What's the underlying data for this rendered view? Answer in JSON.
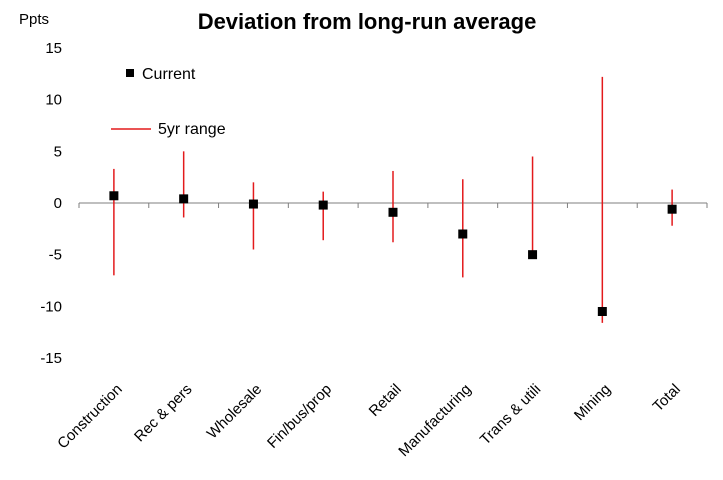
{
  "chart_data": {
    "type": "scatter",
    "title": "Deviation from long-run average",
    "ylabel": "Ppts",
    "xlabel": "",
    "ylim": [
      -15,
      15
    ],
    "yticks": [
      15,
      10,
      5,
      0,
      -5,
      -10,
      -15
    ],
    "grid": false,
    "legend_position": "top-left",
    "categories": [
      "Construction",
      "Rec & pers",
      "Wholesale",
      "Fin/bus/prop",
      "Retail",
      "Manufacturing",
      "Trans & utili",
      "Mining",
      "Total"
    ],
    "series": [
      {
        "name": "Current",
        "marker": "square",
        "color": "#000000",
        "values": [
          0.7,
          0.4,
          -0.1,
          -0.2,
          -0.9,
          -3.0,
          -5.0,
          -10.5,
          -0.6
        ]
      },
      {
        "name": "5yr range",
        "marker": "vertical-line",
        "color": "#e31a1c",
        "low": [
          -7.0,
          -1.4,
          -4.5,
          -3.6,
          -3.8,
          -7.2,
          -5.0,
          -11.6,
          -2.2
        ],
        "high": [
          3.3,
          5.0,
          2.0,
          1.1,
          3.1,
          2.3,
          4.5,
          12.2,
          1.3
        ]
      }
    ]
  }
}
